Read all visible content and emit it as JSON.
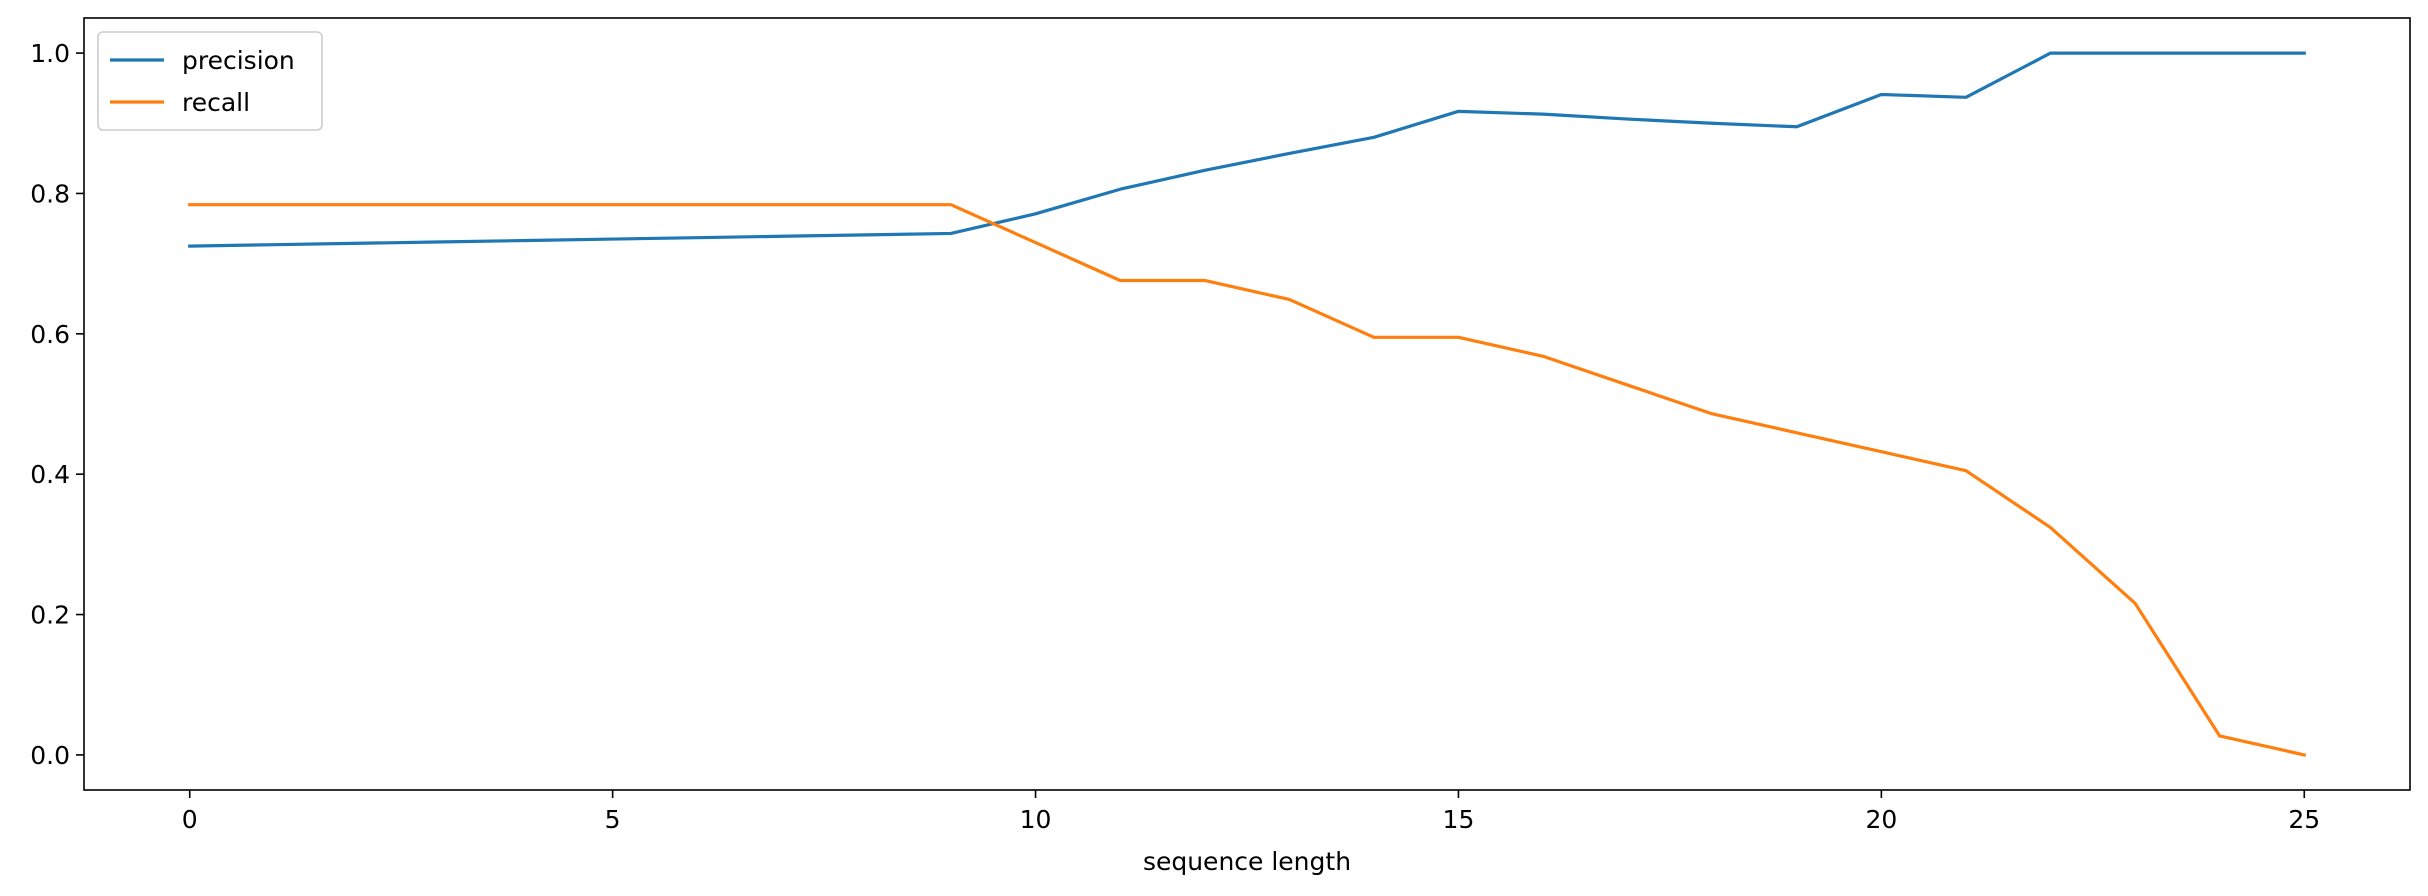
{
  "chart_data": {
    "type": "line",
    "title": "",
    "xlabel": "sequence length",
    "ylabel": "",
    "xlim": [
      -1.25,
      26.25
    ],
    "ylim": [
      -0.05,
      1.05
    ],
    "xticks": [
      "0",
      "5",
      "10",
      "15",
      "20",
      "25"
    ],
    "yticks": [
      "0.0",
      "0.2",
      "0.4",
      "0.6",
      "0.8",
      "1.0"
    ],
    "grid": false,
    "legend_position": "upper left",
    "x": [
      0,
      1,
      2,
      3,
      4,
      5,
      6,
      7,
      8,
      9,
      10,
      11,
      12,
      13,
      14,
      15,
      16,
      17,
      18,
      19,
      20,
      21,
      22,
      23,
      24,
      25
    ],
    "series": [
      {
        "name": "precision",
        "color": "#1f77b4",
        "values": [
          0.725,
          0.727,
          0.729,
          0.731,
          0.733,
          0.735,
          0.737,
          0.739,
          0.741,
          0.743,
          0.771,
          0.806,
          0.833,
          0.857,
          0.88,
          0.917,
          0.913,
          0.906,
          0.9,
          0.895,
          0.941,
          0.937,
          1.0,
          1.0,
          1.0,
          1.0
        ]
      },
      {
        "name": "recall",
        "color": "#ff7f0e",
        "values": [
          0.784,
          0.784,
          0.784,
          0.784,
          0.784,
          0.784,
          0.784,
          0.784,
          0.784,
          0.784,
          0.73,
          0.676,
          0.676,
          0.649,
          0.595,
          0.595,
          0.568,
          0.527,
          0.486,
          0.459,
          0.432,
          0.405,
          0.324,
          0.216,
          0.027,
          0.0
        ]
      }
    ]
  }
}
